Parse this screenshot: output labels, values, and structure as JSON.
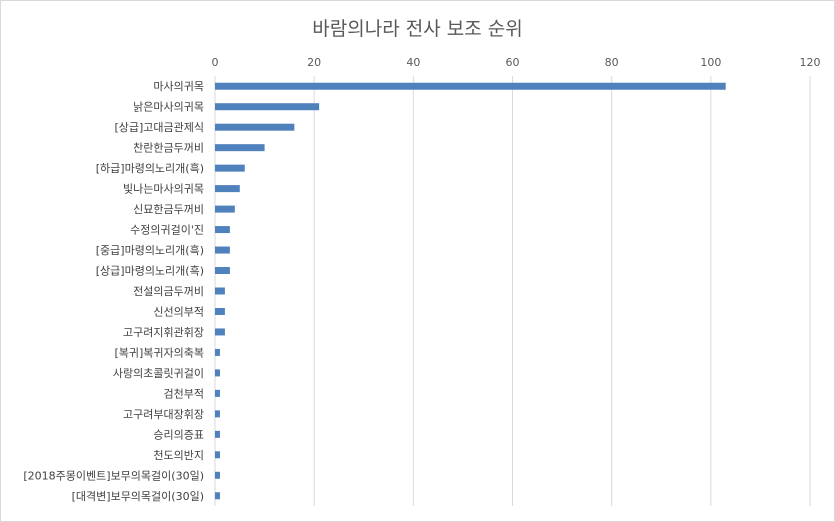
{
  "chart_data": {
    "type": "bar",
    "orientation": "horizontal",
    "title": "바람의나라 전사 보조 순위",
    "xlabel": "",
    "ylabel": "",
    "xlim": [
      0,
      120
    ],
    "x_ticks": [
      0,
      20,
      40,
      60,
      80,
      100,
      120
    ],
    "x_axis_position": "top",
    "grid": true,
    "legend": "none",
    "categories": [
      "마사의귀목",
      "낡은마사의귀목",
      "[상급]고대금관제식",
      "찬란한금두꺼비",
      "[하급]마령의노리개(흑)",
      "빛나는마사의귀목",
      "신묘한금두꺼비",
      "수정의귀걸이'진",
      "[중급]마령의노리개(흑)",
      "[상급]마령의노리개(흑)",
      "전설의금두꺼비",
      "신선의부적",
      "고구려지휘관휘장",
      "[복귀]복귀자의축복",
      "사랑의초콜릿귀걸이",
      "검천부적",
      "고구려부대장휘장",
      "승리의증표",
      "천도의반지",
      "[2018주몽이벤트]보무의목걸이(30일)",
      "[대격변]보무의목걸이(30일)"
    ],
    "values": [
      103,
      21,
      16,
      10,
      6,
      5,
      4,
      3,
      3,
      3,
      2,
      2,
      2,
      1,
      1,
      1,
      1,
      1,
      1,
      1,
      1
    ],
    "bar_color": "#4f81bd",
    "grid_color": "#d9d9d9"
  }
}
